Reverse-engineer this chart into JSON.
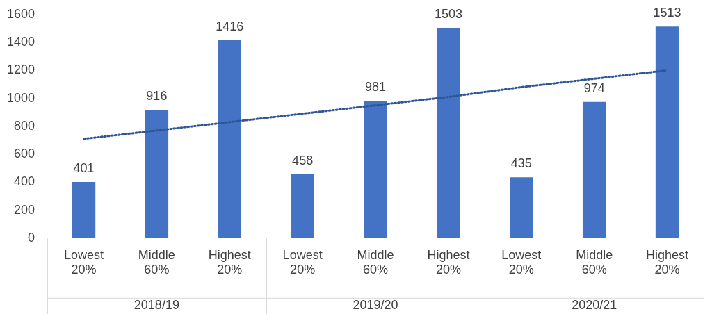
{
  "chart_data": {
    "type": "bar",
    "categories": [
      "Lowest 20%",
      "Middle 60%",
      "Highest 20%",
      "Lowest 20%",
      "Middle 60%",
      "Highest 20%",
      "Lowest 20%",
      "Middle 60%",
      "Highest 20%"
    ],
    "series": [
      {
        "color": "#4472c4",
        "values": [
          401,
          916,
          1416,
          458,
          981,
          1503,
          435,
          974,
          1513
        ],
        "value_labels": [
          "401",
          "916",
          "1416",
          "458",
          "981",
          "1503",
          "435",
          "974",
          "1513"
        ]
      },
      {
        "type": "line",
        "color": "#2f5597",
        "line_style": "dotted",
        "marker": "none",
        "values": [
          710,
          770,
          830,
          890,
          950,
          1010,
          1080,
          1140,
          1200
        ]
      }
    ],
    "annotations": [
      "2018/19",
      "2019/20",
      "2020/21"
    ],
    "ylim": [
      0,
      1600
    ],
    "yticks": [
      0,
      200,
      400,
      600,
      800,
      1000,
      1200,
      1400,
      1600
    ],
    "grid": false,
    "legend": false
  }
}
